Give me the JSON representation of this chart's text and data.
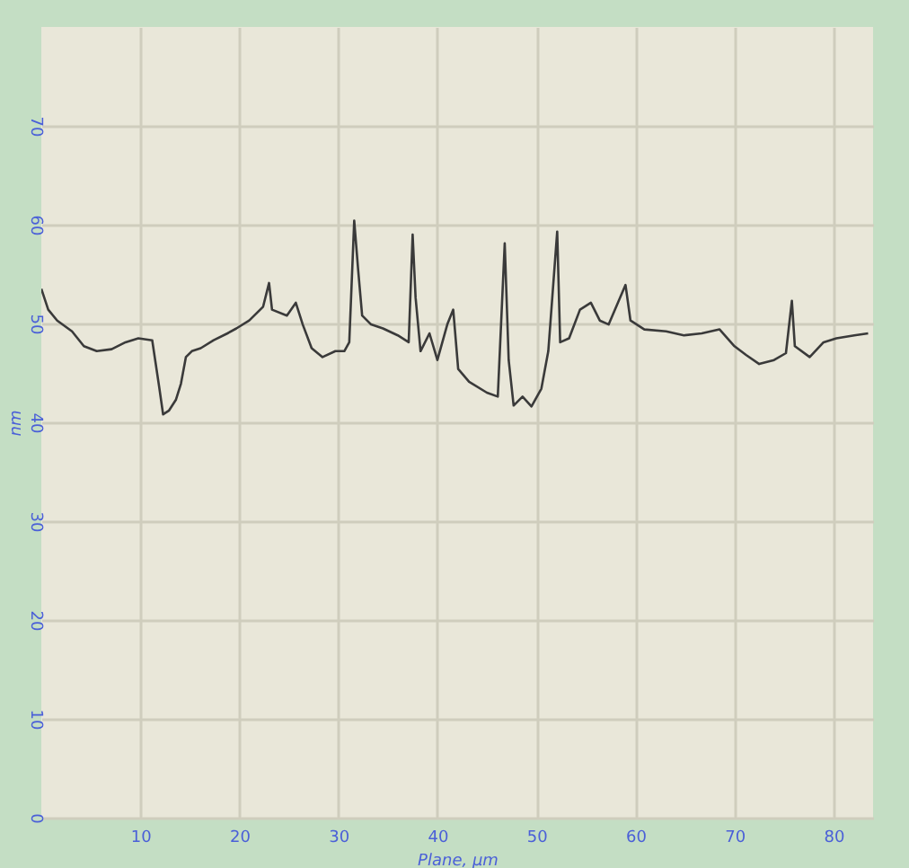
{
  "chart_data": {
    "type": "line",
    "xlabel": "Plane, µm",
    "ylabel": "nm",
    "xlim": [
      0,
      84
    ],
    "ylim": [
      0,
      80
    ],
    "xticks": [
      10,
      20,
      30,
      40,
      50,
      60,
      70,
      80
    ],
    "yticks": [
      0,
      10,
      20,
      30,
      40,
      50,
      60,
      70
    ],
    "grid": true,
    "marker": "none",
    "line_style": "solid",
    "series": [
      {
        "color": "#3a3a3a",
        "x": [
          0,
          0.7,
          1.6,
          3.1,
          4.3,
          5.6,
          7.1,
          8.5,
          9.8,
          11.2,
          11.9,
          12.3,
          12.9,
          13.6,
          14.1,
          14.6,
          15.2,
          16.1,
          17.4,
          18.8,
          19.7,
          21.0,
          22.4,
          23.0,
          23.3,
          24.8,
          25.7,
          26.4,
          27.3,
          28.4,
          29.7,
          30.6,
          31.1,
          31.6,
          32.0,
          32.4,
          33.3,
          34.5,
          36.0,
          37.1,
          37.5,
          37.8,
          38.3,
          39.2,
          40.0,
          41.0,
          41.6,
          42.1,
          43.2,
          45.0,
          46.1,
          46.8,
          47.2,
          47.7,
          48.6,
          49.5,
          50.5,
          51.2,
          52.1,
          52.4,
          53.3,
          54.4,
          55.5,
          56.4,
          57.3,
          59.0,
          59.5,
          60.9,
          63.1,
          64.9,
          66.7,
          68.5,
          70.0,
          71.2,
          72.5,
          74.0,
          75.2,
          75.8,
          76.1,
          77.6,
          79.0,
          80.3,
          82.1,
          83.5
        ],
        "values": [
          53.5,
          51.4,
          50.3,
          49.2,
          47.7,
          47.2,
          47.4,
          48.1,
          48.5,
          48.3,
          43.6,
          40.8,
          41.2,
          42.3,
          43.9,
          46.6,
          47.2,
          47.5,
          48.3,
          49.0,
          49.5,
          50.3,
          51.7,
          54.1,
          51.4,
          50.8,
          52.1,
          49.9,
          47.5,
          46.6,
          47.2,
          47.2,
          48.1,
          60.4,
          55.4,
          50.8,
          49.9,
          49.5,
          48.8,
          48.1,
          59.0,
          52.6,
          47.2,
          49.0,
          46.3,
          49.9,
          51.4,
          45.4,
          44.1,
          43.0,
          42.6,
          58.1,
          46.3,
          41.7,
          42.6,
          41.6,
          43.4,
          47.2,
          59.3,
          48.1,
          48.5,
          51.4,
          52.1,
          50.3,
          49.9,
          53.9,
          50.3,
          49.4,
          49.2,
          48.8,
          49.0,
          49.4,
          47.7,
          46.8,
          45.9,
          46.3,
          47.0,
          52.3,
          47.7,
          46.6,
          48.1,
          48.5,
          48.8,
          49.0
        ]
      }
    ]
  }
}
